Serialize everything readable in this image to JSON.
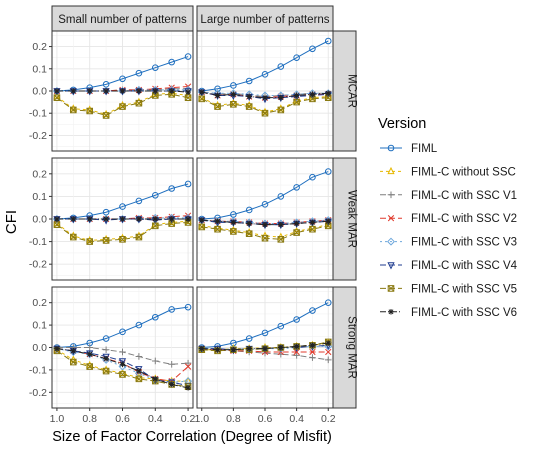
{
  "chart_data": {
    "type": "line",
    "title": "",
    "xlabel": "Size of Factor Correlation (Degree of Misfit)",
    "ylabel": "CFI",
    "x": [
      1.0,
      0.9,
      0.8,
      0.7,
      0.6,
      0.5,
      0.4,
      0.3,
      0.2
    ],
    "xlim": [
      1.03,
      0.17
    ],
    "ylim": [
      -0.27,
      0.27
    ],
    "xticks": [
      "1.0",
      "0.8",
      "0.6",
      "0.4",
      "0.2"
    ],
    "yticks": [
      "0.2",
      "0.1",
      "0.0",
      "-0.1",
      "-0.2"
    ],
    "grid": true,
    "legend_position": "right",
    "legend_title": "Version",
    "col_facets": [
      "Small number of patterns",
      "Large number of patterns"
    ],
    "row_facets": [
      "MCAR",
      "Weak MAR",
      "Strong MAR"
    ],
    "series_styles": [
      {
        "name": "FIML",
        "color": "#1f6fbf",
        "dash": "",
        "marker": "circle"
      },
      {
        "name": "FIML-C  without SSC",
        "color": "#e6b800",
        "dash": "3,3",
        "marker": "triangle-up"
      },
      {
        "name": "FIML-C with SSC V1",
        "color": "#7f7f7f",
        "dash": "6,3",
        "marker": "plus"
      },
      {
        "name": "FIML-C with SSC V2",
        "color": "#e0392b",
        "dash": "6,3",
        "marker": "x"
      },
      {
        "name": "FIML-C with SSC V3",
        "color": "#6fa8dc",
        "dash": "2,3",
        "marker": "diamond"
      },
      {
        "name": "FIML-C with SSC V4",
        "color": "#1f3b8f",
        "dash": "6,3",
        "marker": "triangle-down"
      },
      {
        "name": "FIML-C with SSC V5",
        "color": "#8a7a12",
        "dash": "6,3",
        "marker": "square-x"
      },
      {
        "name": "FIML-C with SSC V6",
        "color": "#222222",
        "dash": "6,2,1,2",
        "marker": "star"
      }
    ],
    "panels": [
      {
        "row": 0,
        "col": 0,
        "series": [
          [
            0.0,
            0.005,
            0.015,
            0.03,
            0.055,
            0.08,
            0.105,
            0.13,
            0.155
          ],
          [
            -0.025,
            -0.08,
            -0.085,
            -0.105,
            -0.065,
            -0.05,
            -0.015,
            -0.01,
            -0.02
          ],
          [
            0.0,
            0.0,
            0.0,
            0.0,
            0.005,
            0.005,
            0.005,
            0.01,
            0.01
          ],
          [
            0.0,
            0.0,
            0.0,
            0.0,
            0.005,
            0.005,
            0.01,
            0.015,
            0.02
          ],
          [
            0.0,
            0.0,
            0.0,
            0.0,
            0.0,
            0.005,
            0.005,
            0.005,
            0.005
          ],
          [
            0.0,
            0.0,
            0.0,
            0.0,
            0.0,
            0.0,
            0.0,
            0.0,
            0.0
          ],
          [
            -0.03,
            -0.085,
            -0.09,
            -0.11,
            -0.07,
            -0.055,
            -0.02,
            -0.015,
            -0.03
          ],
          [
            0.0,
            0.0,
            0.0,
            0.0,
            0.0,
            0.0,
            0.0,
            0.0,
            -0.005
          ]
        ]
      },
      {
        "row": 0,
        "col": 1,
        "series": [
          [
            0.0,
            0.01,
            0.025,
            0.045,
            0.075,
            0.11,
            0.15,
            0.19,
            0.225
          ],
          [
            -0.03,
            -0.065,
            -0.055,
            -0.065,
            -0.095,
            -0.08,
            -0.045,
            -0.03,
            -0.025
          ],
          [
            -0.005,
            -0.015,
            -0.01,
            -0.02,
            -0.025,
            -0.02,
            -0.015,
            -0.01,
            -0.01
          ],
          [
            -0.005,
            -0.02,
            -0.015,
            -0.025,
            -0.03,
            -0.025,
            -0.02,
            -0.015,
            -0.015
          ],
          [
            -0.005,
            -0.01,
            -0.01,
            -0.015,
            -0.02,
            -0.02,
            -0.015,
            -0.01,
            -0.01
          ],
          [
            -0.005,
            -0.02,
            -0.02,
            -0.025,
            -0.035,
            -0.03,
            -0.025,
            -0.02,
            -0.015
          ],
          [
            -0.035,
            -0.07,
            -0.06,
            -0.07,
            -0.1,
            -0.085,
            -0.05,
            -0.035,
            -0.03
          ],
          [
            -0.005,
            -0.02,
            -0.015,
            -0.025,
            -0.03,
            -0.03,
            -0.02,
            -0.015,
            -0.01
          ]
        ]
      },
      {
        "row": 1,
        "col": 0,
        "series": [
          [
            0.0,
            0.005,
            0.015,
            0.03,
            0.055,
            0.08,
            0.105,
            0.135,
            0.155
          ],
          [
            -0.02,
            -0.075,
            -0.095,
            -0.09,
            -0.085,
            -0.075,
            -0.025,
            -0.015,
            -0.01
          ],
          [
            0.0,
            0.0,
            0.0,
            0.0,
            0.0,
            0.0,
            0.0,
            0.0,
            0.0
          ],
          [
            0.0,
            0.0,
            0.0,
            0.0,
            0.0,
            0.005,
            0.005,
            0.01,
            0.015
          ],
          [
            0.0,
            0.0,
            0.0,
            0.0,
            0.0,
            0.0,
            0.005,
            0.005,
            0.005
          ],
          [
            0.0,
            0.0,
            0.0,
            -0.005,
            0.0,
            0.0,
            -0.005,
            0.0,
            0.0
          ],
          [
            -0.025,
            -0.08,
            -0.1,
            -0.095,
            -0.09,
            -0.08,
            -0.03,
            -0.02,
            -0.015
          ],
          [
            0.0,
            0.0,
            0.0,
            0.0,
            0.0,
            0.0,
            0.0,
            0.0,
            0.0
          ]
        ]
      },
      {
        "row": 1,
        "col": 1,
        "series": [
          [
            0.0,
            0.005,
            0.02,
            0.04,
            0.065,
            0.1,
            0.14,
            0.185,
            0.21
          ],
          [
            -0.03,
            -0.04,
            -0.05,
            -0.06,
            -0.075,
            -0.08,
            -0.055,
            -0.04,
            -0.025
          ],
          [
            -0.005,
            -0.01,
            -0.015,
            -0.02,
            -0.025,
            -0.025,
            -0.02,
            -0.015,
            -0.01
          ],
          [
            -0.005,
            -0.01,
            -0.01,
            -0.015,
            -0.02,
            -0.02,
            -0.015,
            -0.01,
            -0.005
          ],
          [
            -0.005,
            -0.01,
            -0.01,
            -0.015,
            -0.02,
            -0.02,
            -0.015,
            -0.01,
            -0.005
          ],
          [
            -0.005,
            -0.015,
            -0.015,
            -0.02,
            -0.025,
            -0.025,
            -0.02,
            -0.015,
            -0.01
          ],
          [
            -0.035,
            -0.045,
            -0.055,
            -0.065,
            -0.085,
            -0.09,
            -0.06,
            -0.045,
            -0.03
          ],
          [
            -0.005,
            -0.01,
            -0.015,
            -0.02,
            -0.025,
            -0.025,
            -0.02,
            -0.015,
            -0.01
          ]
        ]
      },
      {
        "row": 2,
        "col": 0,
        "series": [
          [
            0.0,
            0.005,
            0.02,
            0.04,
            0.07,
            0.1,
            0.135,
            0.17,
            0.18
          ],
          [
            -0.01,
            -0.055,
            -0.08,
            -0.1,
            -0.115,
            -0.135,
            -0.14,
            -0.15,
            -0.15
          ],
          [
            0.0,
            0.0,
            0.0,
            -0.01,
            -0.02,
            -0.04,
            -0.06,
            -0.075,
            -0.07
          ],
          [
            -0.005,
            -0.015,
            -0.03,
            -0.05,
            -0.07,
            -0.11,
            -0.14,
            -0.15,
            -0.085
          ],
          [
            -0.005,
            -0.02,
            -0.03,
            -0.055,
            -0.085,
            -0.115,
            -0.145,
            -0.155,
            -0.15
          ],
          [
            -0.005,
            -0.015,
            -0.025,
            -0.04,
            -0.06,
            -0.095,
            -0.145,
            -0.155,
            -0.17
          ],
          [
            -0.015,
            -0.065,
            -0.085,
            -0.105,
            -0.12,
            -0.14,
            -0.15,
            -0.165,
            -0.175
          ],
          [
            -0.005,
            -0.015,
            -0.03,
            -0.05,
            -0.075,
            -0.105,
            -0.14,
            -0.165,
            -0.18
          ]
        ]
      },
      {
        "row": 2,
        "col": 1,
        "series": [
          [
            0.0,
            0.005,
            0.02,
            0.04,
            0.065,
            0.095,
            0.125,
            0.165,
            0.2
          ],
          [
            -0.01,
            -0.01,
            -0.005,
            -0.005,
            0.0,
            0.0,
            0.005,
            0.01,
            0.02
          ],
          [
            -0.005,
            -0.01,
            -0.015,
            -0.02,
            -0.025,
            -0.03,
            -0.035,
            -0.045,
            -0.055
          ],
          [
            -0.005,
            -0.01,
            -0.015,
            -0.015,
            -0.02,
            -0.02,
            -0.02,
            -0.02,
            -0.02
          ],
          [
            -0.005,
            -0.005,
            -0.01,
            -0.01,
            -0.005,
            -0.005,
            0.0,
            0.005,
            0.005
          ],
          [
            -0.005,
            -0.005,
            -0.01,
            -0.005,
            -0.005,
            0.0,
            0.0,
            0.005,
            0.01
          ],
          [
            -0.01,
            -0.015,
            -0.01,
            -0.01,
            -0.005,
            0.0,
            0.005,
            0.01,
            0.025
          ],
          [
            -0.005,
            -0.01,
            -0.01,
            -0.005,
            -0.005,
            0.0,
            0.005,
            0.01,
            0.02
          ]
        ]
      }
    ]
  }
}
